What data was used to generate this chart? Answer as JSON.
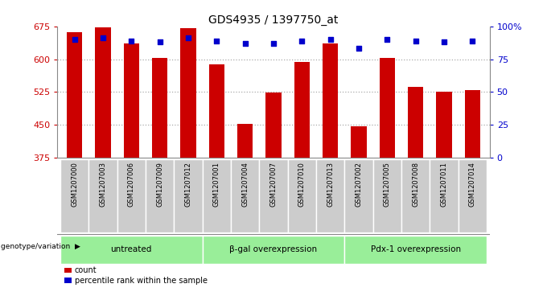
{
  "title": "GDS4935 / 1397750_at",
  "samples": [
    "GSM1207000",
    "GSM1207003",
    "GSM1207006",
    "GSM1207009",
    "GSM1207012",
    "GSM1207001",
    "GSM1207004",
    "GSM1207007",
    "GSM1207010",
    "GSM1207013",
    "GSM1207002",
    "GSM1207005",
    "GSM1207008",
    "GSM1207011",
    "GSM1207014"
  ],
  "counts": [
    662,
    672,
    635,
    603,
    670,
    588,
    452,
    524,
    594,
    635,
    447,
    603,
    536,
    525,
    530
  ],
  "percentiles": [
    90,
    91,
    89,
    88,
    91,
    89,
    87,
    87,
    89,
    90,
    83,
    90,
    89,
    88,
    89
  ],
  "groups": [
    {
      "label": "untreated",
      "start": 0,
      "end": 5
    },
    {
      "label": "β-gal overexpression",
      "start": 5,
      "end": 10
    },
    {
      "label": "Pdx-1 overexpression",
      "start": 10,
      "end": 15
    }
  ],
  "ylim_left": [
    375,
    675
  ],
  "ylim_right": [
    0,
    100
  ],
  "bar_color": "#cc0000",
  "dot_color": "#0000cc",
  "sample_bg_color": "#cccccc",
  "group_bg_color": "#99ee99",
  "left_tick_color": "#cc0000",
  "right_tick_color": "#0000cc",
  "grid_color": "#888888",
  "bar_width": 0.55,
  "yticks_left": [
    375,
    450,
    525,
    600,
    675
  ],
  "yticks_right": [
    0,
    25,
    50,
    75,
    100
  ],
  "ylabel_right_labels": [
    "0",
    "25",
    "50",
    "75",
    "100%"
  ],
  "legend_count_label": "count",
  "legend_percentile_label": "percentile rank within the sample",
  "genotype_label": "genotype/variation"
}
